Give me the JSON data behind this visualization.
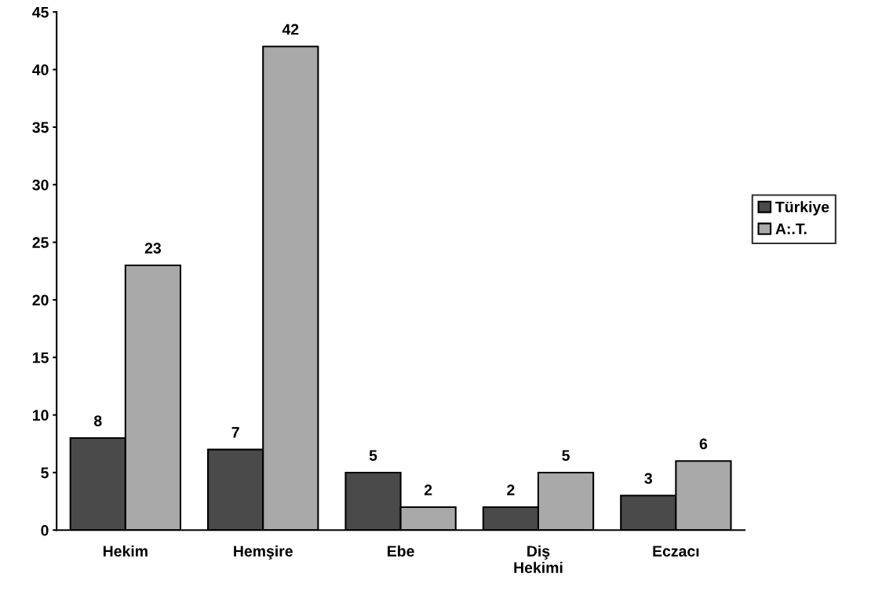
{
  "chart_data": {
    "type": "bar",
    "categories": [
      "Hekim",
      "Hemşire",
      "Ebe",
      "Diş\nHekimi",
      "Eczacı"
    ],
    "series": [
      {
        "name": "Türkiye",
        "color": "#4a4a4a",
        "values": [
          8,
          7,
          5,
          2,
          3
        ]
      },
      {
        "name": "A:.T.",
        "color": "#a9a9a9",
        "values": [
          23,
          42,
          2,
          5,
          6
        ]
      }
    ],
    "ylim": [
      0,
      45
    ],
    "yticks": [
      0,
      5,
      10,
      15,
      20,
      25,
      30,
      35,
      40,
      45
    ],
    "grid": false,
    "legend": "right",
    "data_labels": true
  }
}
